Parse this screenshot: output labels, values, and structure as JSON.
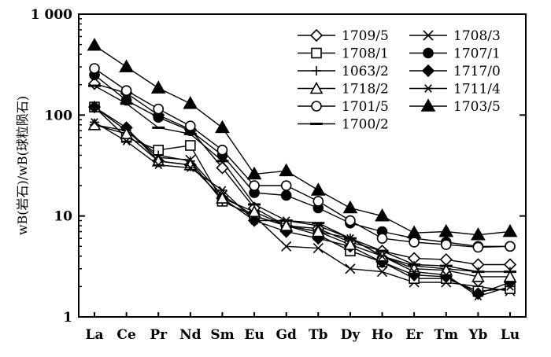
{
  "chart_data": {
    "type": "line",
    "y_scale": "log",
    "ylim": [
      1,
      1000
    ],
    "ylabel": "wB(岩石)/wB(球粒陨石)",
    "categories": [
      "La",
      "Ce",
      "Pr",
      "Nd",
      "Sm",
      "Eu",
      "Gd",
      "Tb",
      "Dy",
      "Ho",
      "Er",
      "Tm",
      "Yb",
      "Lu"
    ],
    "y_ticks": [
      {
        "value": 1,
        "label": "1"
      },
      {
        "value": 10,
        "label": "10"
      },
      {
        "value": 100,
        "label": "100"
      },
      {
        "value": 1000,
        "label": "1 000"
      }
    ],
    "legend_position": "top-right",
    "series": [
      {
        "name": "1709/5",
        "marker": "diamond-open",
        "values": [
          205,
          165,
          100,
          72,
          30,
          12,
          8,
          7.5,
          5.5,
          4.5,
          3.8,
          3.7,
          3.3,
          3.3
        ]
      },
      {
        "name": "1708/3",
        "marker": "x",
        "values": [
          120,
          70,
          38,
          36,
          16,
          10,
          5,
          4.8,
          3,
          2.8,
          2.2,
          2.2,
          2,
          1.8
        ]
      },
      {
        "name": "1708/1",
        "marker": "square-open",
        "values": [
          120,
          60,
          45,
          50,
          14,
          10,
          8,
          6.5,
          4.5,
          3.5,
          2.4,
          2.4,
          1.8,
          1.9
        ]
      },
      {
        "name": "1707/1",
        "marker": "circle-filled",
        "values": [
          250,
          140,
          95,
          70,
          40,
          17,
          16,
          12,
          8.5,
          7,
          6,
          5.5,
          5,
          5
        ]
      },
      {
        "name": "1063/2",
        "marker": "plus",
        "values": [
          80,
          70,
          40,
          35,
          14,
          10,
          8,
          7,
          6,
          4,
          3.2,
          3,
          2.8,
          2.8
        ]
      },
      {
        "name": "1717/0",
        "marker": "diamond-filled",
        "values": [
          120,
          75,
          35,
          32,
          15,
          9,
          7,
          6,
          5,
          3.5,
          2.6,
          2.5,
          1.7,
          2.2
        ]
      },
      {
        "name": "1718/2",
        "marker": "triangle-open",
        "values": [
          80,
          65,
          35,
          32,
          15,
          11,
          8,
          7,
          5.2,
          4,
          3,
          2.9,
          2.5,
          2.5
        ]
      },
      {
        "name": "1711/4",
        "marker": "asterisk",
        "values": [
          85,
          55,
          32,
          30,
          18,
          9,
          9,
          8,
          6,
          4,
          2.8,
          2.6,
          1.6,
          2
        ]
      },
      {
        "name": "1701/5",
        "marker": "circle-open",
        "values": [
          290,
          175,
          115,
          78,
          45,
          20,
          20,
          14,
          9,
          6,
          5.5,
          5.2,
          4.9,
          5
        ]
      },
      {
        "name": "1703/5",
        "marker": "triangle-filled",
        "values": [
          490,
          300,
          185,
          130,
          75,
          26,
          28,
          18,
          12,
          10,
          6.8,
          7,
          6.5,
          7
        ]
      },
      {
        "name": "1700/2",
        "marker": "dash",
        "values": [
          195,
          130,
          75,
          65,
          35,
          13,
          9,
          8.5,
          6,
          4.5,
          3.3,
          3.2,
          2.8,
          2.8
        ]
      }
    ]
  }
}
